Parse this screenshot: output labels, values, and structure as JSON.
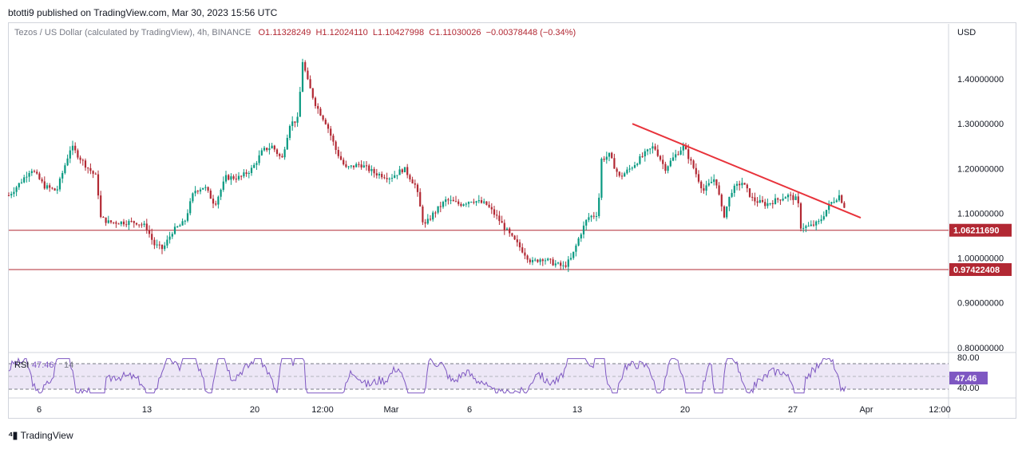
{
  "header": {
    "publisher_line": "btotti9 published on TradingView.com, Mar 30, 2023 15:56 UTC"
  },
  "legend": {
    "symbol": "Tezos / US Dollar (calculated by TradingView), 4h, BINANCE",
    "open": "O1.11328249",
    "high": "H1.12024110",
    "low": "L1.10427998",
    "close": "C1.11030026",
    "change": "−0.00378448 (−0.34%)"
  },
  "footer": {
    "brand": "TradingView"
  },
  "chart_data": {
    "type": "candlestick",
    "currency_label": "USD",
    "price_axis": {
      "range": [
        0.78,
        1.5
      ],
      "ticks": [
        0.8,
        0.9,
        1.0,
        1.1,
        1.2,
        1.3,
        1.4
      ],
      "tick_labels": [
        "0.80000000",
        "0.90000000",
        "1.00000000",
        "1.10000000",
        "1.20000000",
        "1.30000000",
        "1.40000000"
      ]
    },
    "time_axis": {
      "ticks": [
        {
          "t": 38,
          "label": "6"
        },
        {
          "t": 173,
          "label": "13"
        },
        {
          "t": 308,
          "label": "20"
        },
        {
          "t": 393,
          "label": "12:00"
        },
        {
          "t": 479,
          "label": "Mar"
        },
        {
          "t": 577,
          "label": "6"
        },
        {
          "t": 712,
          "label": "13"
        },
        {
          "t": 847,
          "label": "20"
        },
        {
          "t": 982,
          "label": "27"
        },
        {
          "t": 1074,
          "label": "Apr"
        },
        {
          "t": 1166,
          "label": "12:00"
        }
      ]
    },
    "horizontal_lines": [
      {
        "value": 1.0621169,
        "label": "1.06211690",
        "color": "#b22833"
      },
      {
        "value": 0.97422408,
        "label": "0.97422408",
        "color": "#b22833"
      }
    ],
    "trendline": {
      "color": "#e8333b",
      "start": {
        "t": 781,
        "price": 1.3
      },
      "end": {
        "t": 1067,
        "price": 1.09
      }
    },
    "price_path": [
      [
        0,
        1.14
      ],
      [
        15,
        1.17
      ],
      [
        28,
        1.2
      ],
      [
        45,
        1.16
      ],
      [
        60,
        1.15
      ],
      [
        78,
        1.25
      ],
      [
        95,
        1.21
      ],
      [
        110,
        1.18
      ],
      [
        115,
        1.09
      ],
      [
        125,
        1.08
      ],
      [
        140,
        1.08
      ],
      [
        160,
        1.08
      ],
      [
        172,
        1.07
      ],
      [
        182,
        1.03
      ],
      [
        193,
        1.02
      ],
      [
        205,
        1.06
      ],
      [
        220,
        1.08
      ],
      [
        232,
        1.15
      ],
      [
        245,
        1.16
      ],
      [
        258,
        1.12
      ],
      [
        272,
        1.18
      ],
      [
        290,
        1.18
      ],
      [
        305,
        1.2
      ],
      [
        318,
        1.24
      ],
      [
        330,
        1.25
      ],
      [
        342,
        1.22
      ],
      [
        352,
        1.3
      ],
      [
        362,
        1.31
      ],
      [
        368,
        1.44
      ],
      [
        375,
        1.39
      ],
      [
        385,
        1.34
      ],
      [
        398,
        1.3
      ],
      [
        410,
        1.24
      ],
      [
        422,
        1.2
      ],
      [
        440,
        1.21
      ],
      [
        458,
        1.19
      ],
      [
        478,
        1.18
      ],
      [
        495,
        1.2
      ],
      [
        510,
        1.16
      ],
      [
        520,
        1.07
      ],
      [
        532,
        1.1
      ],
      [
        548,
        1.13
      ],
      [
        565,
        1.12
      ],
      [
        580,
        1.13
      ],
      [
        598,
        1.12
      ],
      [
        612,
        1.09
      ],
      [
        628,
        1.05
      ],
      [
        642,
        1.02
      ],
      [
        655,
        0.99
      ],
      [
        668,
        1.0
      ],
      [
        680,
        0.99
      ],
      [
        695,
        0.98
      ],
      [
        705,
        1.0
      ],
      [
        715,
        1.05
      ],
      [
        725,
        1.09
      ],
      [
        738,
        1.1
      ],
      [
        742,
        1.22
      ],
      [
        752,
        1.23
      ],
      [
        765,
        1.18
      ],
      [
        778,
        1.2
      ],
      [
        795,
        1.23
      ],
      [
        808,
        1.25
      ],
      [
        822,
        1.2
      ],
      [
        835,
        1.23
      ],
      [
        845,
        1.25
      ],
      [
        858,
        1.2
      ],
      [
        870,
        1.15
      ],
      [
        885,
        1.18
      ],
      [
        895,
        1.09
      ],
      [
        905,
        1.15
      ],
      [
        918,
        1.17
      ],
      [
        932,
        1.13
      ],
      [
        948,
        1.12
      ],
      [
        962,
        1.13
      ],
      [
        975,
        1.14
      ],
      [
        988,
        1.13
      ],
      [
        992,
        1.07
      ],
      [
        1003,
        1.07
      ],
      [
        1015,
        1.08
      ],
      [
        1028,
        1.12
      ],
      [
        1040,
        1.14
      ],
      [
        1048,
        1.11
      ]
    ],
    "rsi": {
      "label": "RSI",
      "params": "14",
      "value_label": "47.46",
      "value": 47.46,
      "upper_band": 70,
      "lower_band": 30,
      "scale_labels": [
        "80.00",
        "40.00"
      ]
    },
    "colors": {
      "up": "#089981",
      "down": "#b22833",
      "rsi_line": "#7e57c2",
      "rsi_fill": "#ede7f6"
    }
  }
}
